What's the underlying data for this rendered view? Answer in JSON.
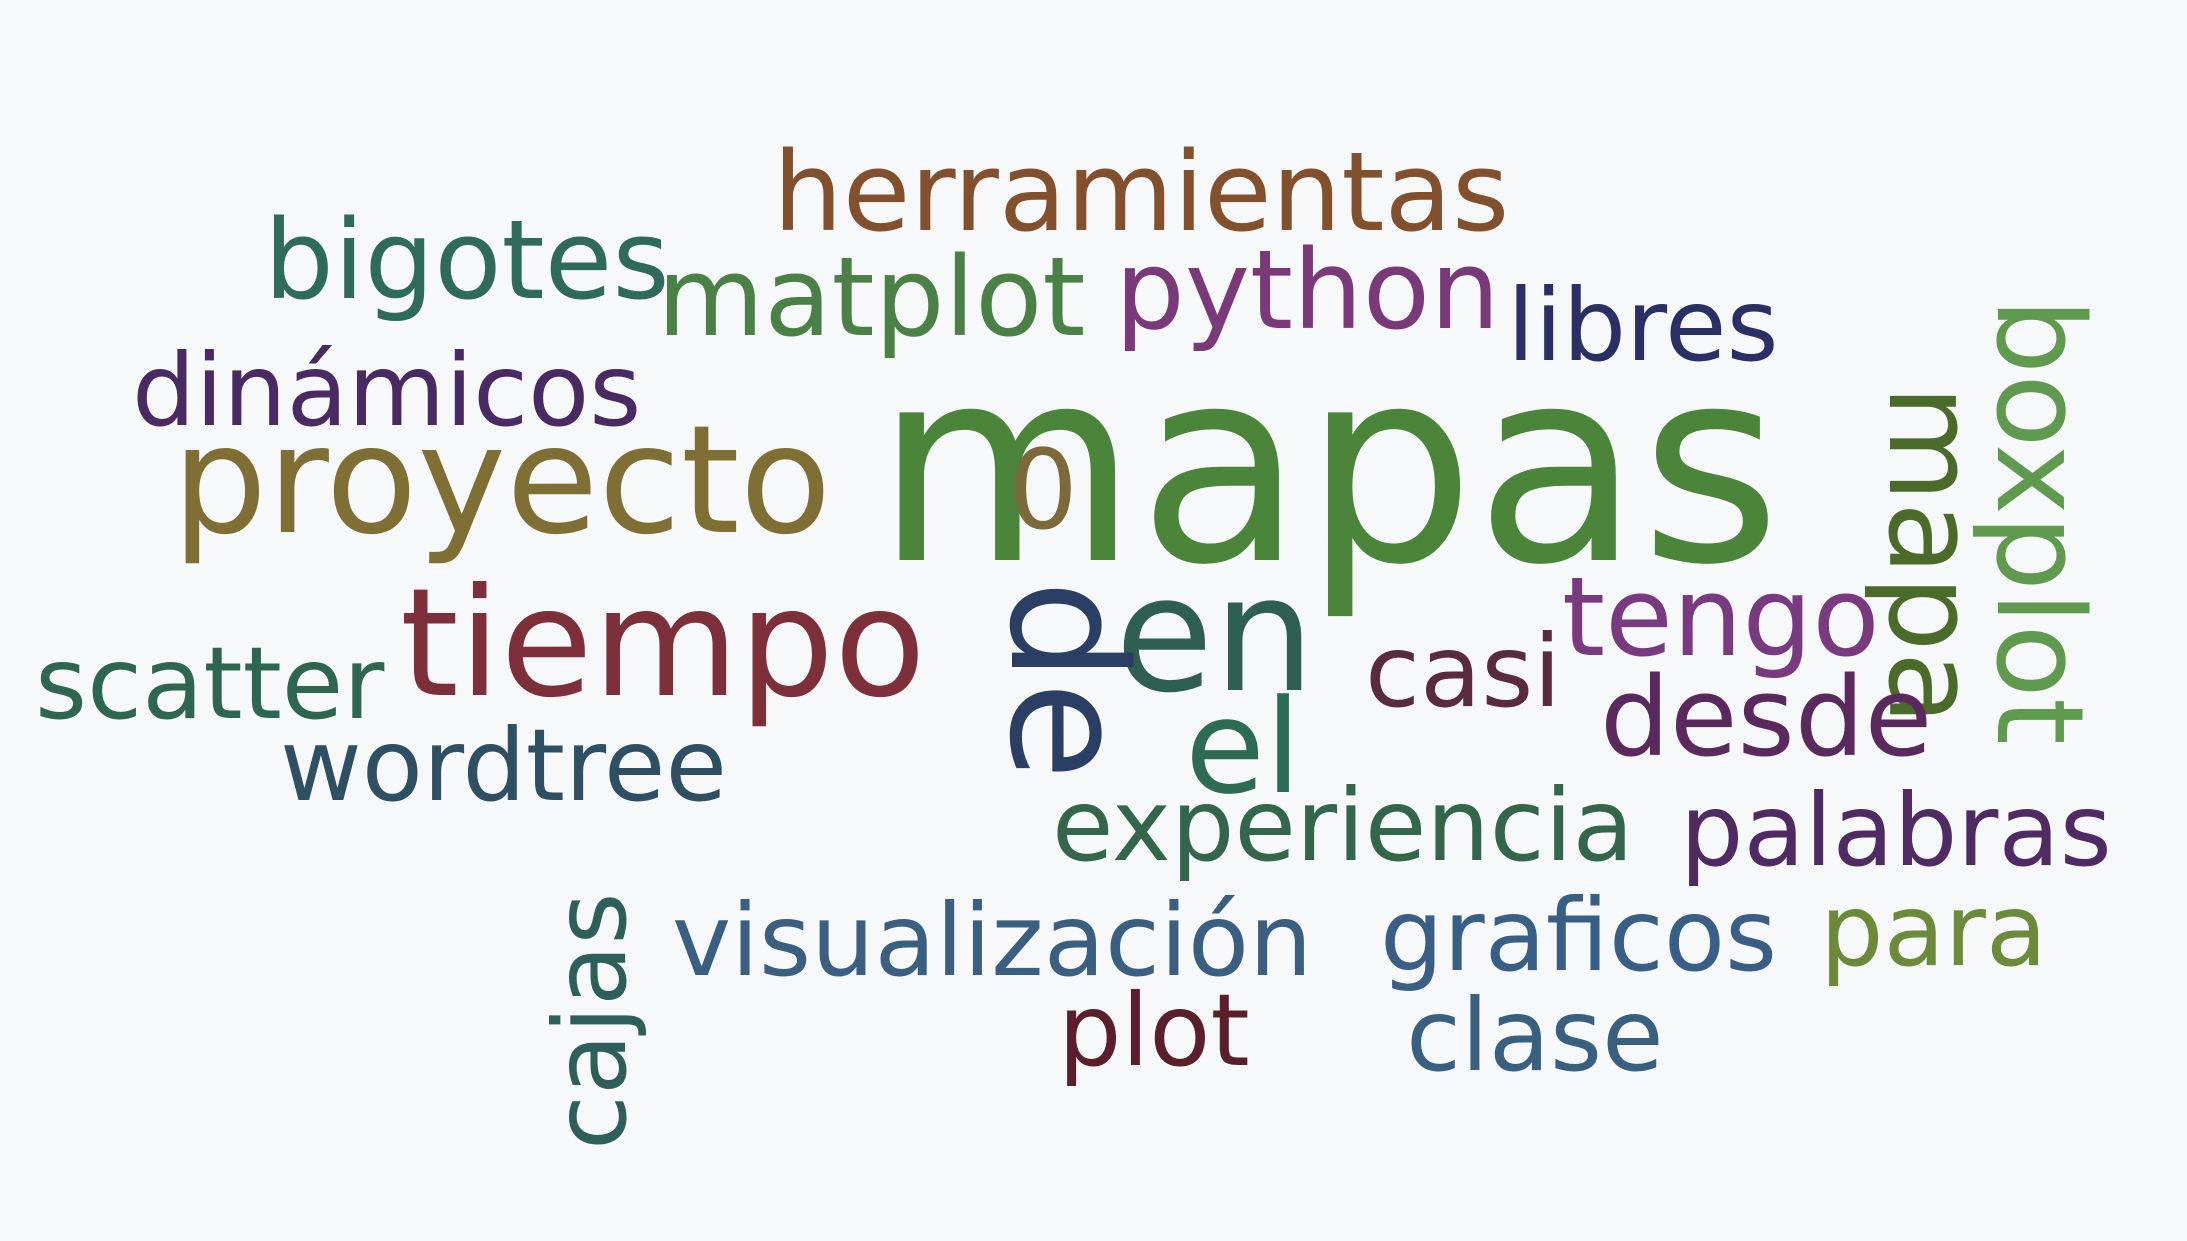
{
  "words": [
    {
      "text": "mapas",
      "color": "#4a8539"
    },
    {
      "text": "proyecto",
      "color": "#7f6f35"
    },
    {
      "text": "tiempo",
      "color": "#7d2f3a"
    },
    {
      "text": "en",
      "color": "#2f5f52"
    },
    {
      "text": "de",
      "color": "#2a3f63"
    },
    {
      "text": "el",
      "color": "#2d6b52"
    },
    {
      "text": "herramientas",
      "color": "#83502e"
    },
    {
      "text": "matplot",
      "color": "#4b8047"
    },
    {
      "text": "python",
      "color": "#7a3a7a"
    },
    {
      "text": "libres",
      "color": "#2a2f66"
    },
    {
      "text": "bigotes",
      "color": "#2f6b5b"
    },
    {
      "text": "dinámicos",
      "color": "#4a2a63"
    },
    {
      "text": "0",
      "color": "#7d6a3a"
    },
    {
      "text": "tengo",
      "color": "#7a3a7f"
    },
    {
      "text": "mapa",
      "color": "#4b6b2a"
    },
    {
      "text": "boxplot",
      "color": "#5f9a4f"
    },
    {
      "text": "casi",
      "color": "#5a2a3f"
    },
    {
      "text": "desde",
      "color": "#5a2a5f"
    },
    {
      "text": "scatter",
      "color": "#2f6650"
    },
    {
      "text": "wordtree",
      "color": "#2f4f63"
    },
    {
      "text": "experiencia",
      "color": "#33664a"
    },
    {
      "text": "palabras",
      "color": "#4f2a63"
    },
    {
      "text": "visualización",
      "color": "#3a5f80"
    },
    {
      "text": "graficos",
      "color": "#3a5f86"
    },
    {
      "text": "para",
      "color": "#6b8a3a"
    },
    {
      "text": "cajas",
      "color": "#2f5f5a"
    },
    {
      "text": "plot",
      "color": "#5a1f2a"
    },
    {
      "text": "clase",
      "color": "#3a6080"
    }
  ]
}
